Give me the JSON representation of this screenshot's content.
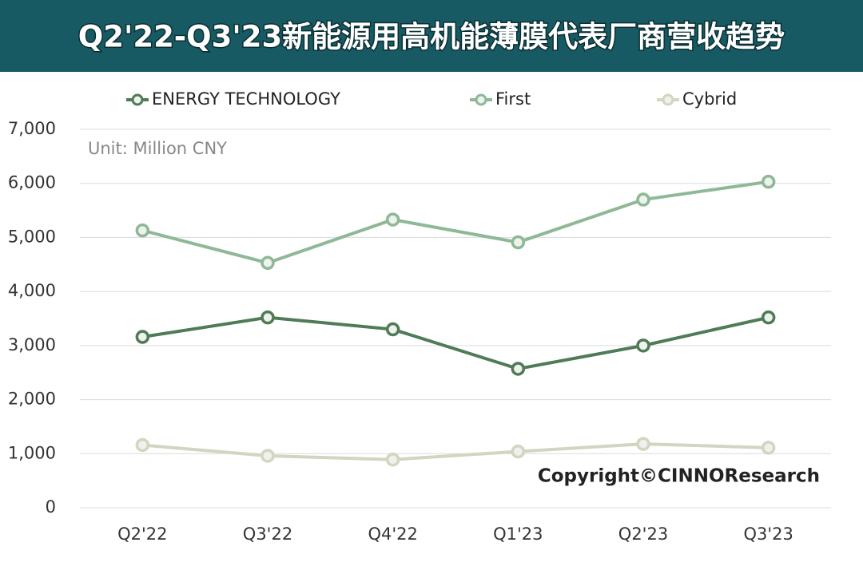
{
  "chart_data": {
    "type": "line",
    "title": "Q2'22-Q3'23新能源用高机能薄膜代表厂商营收趋势",
    "annotations": [
      "Unit: Million CNY",
      "Copyright©CINNOResearch"
    ],
    "categories": [
      "Q2'22",
      "Q3'22",
      "Q4'22",
      "Q1'23",
      "Q2'23",
      "Q3'23"
    ],
    "series": [
      {
        "name": "ENERGY TECHNOLOGY",
        "color": "#4f7b55",
        "values": [
          3160,
          3520,
          3300,
          2570,
          3000,
          3520
        ]
      },
      {
        "name": "First",
        "color": "#8fb896",
        "values": [
          5130,
          4530,
          5330,
          4910,
          5700,
          6030
        ]
      },
      {
        "name": "Cybrid",
        "color": "#d3d5c1",
        "values": [
          1160,
          960,
          890,
          1040,
          1180,
          1110
        ]
      }
    ],
    "ylim": [
      0,
      7000
    ],
    "yticks": [
      0,
      {
        "value": 1000,
        "label": "1,000"
      },
      {
        "value": 2000,
        "label": "2,000"
      },
      {
        "value": 3000,
        "label": "3,000"
      },
      {
        "value": 4000,
        "label": "4,000"
      },
      {
        "value": 5000,
        "label": "5,000"
      },
      {
        "value": 6000,
        "label": "6,000"
      },
      {
        "value": 7000,
        "label": "7,000"
      }
    ],
    "grid": true,
    "legend": "top"
  }
}
